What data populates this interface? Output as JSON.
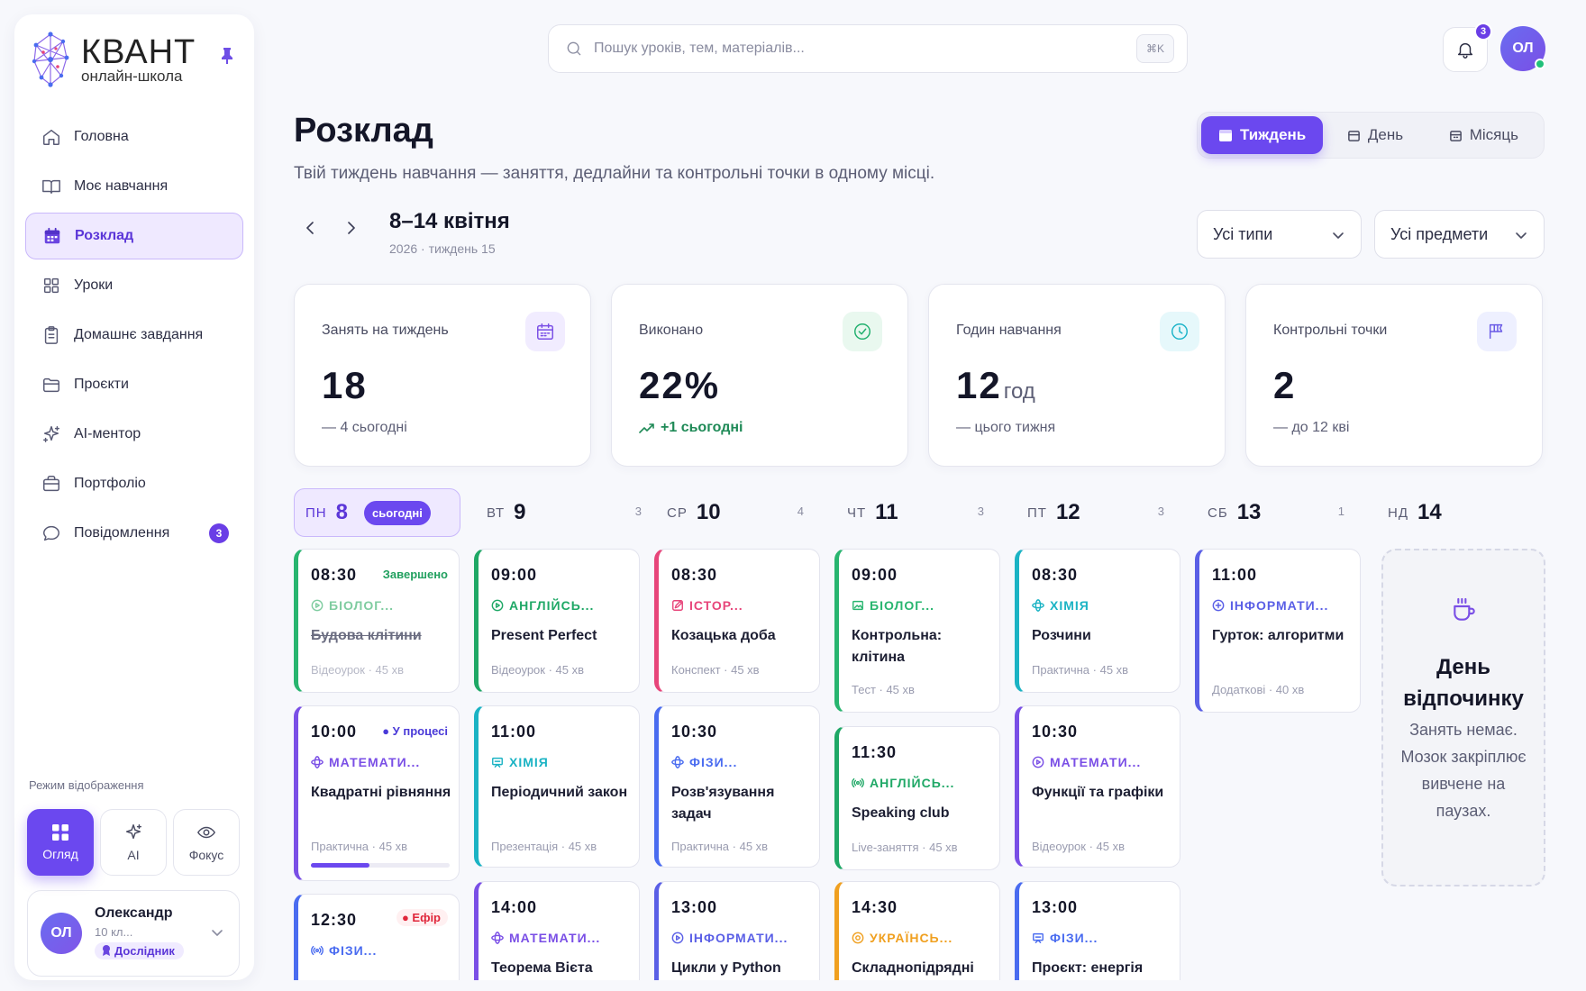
{
  "brand": {
    "name": "КВАНТ",
    "tagline": "онлайн-школа"
  },
  "sidebar": {
    "items": [
      {
        "label": "Головна",
        "icon": "home-icon"
      },
      {
        "label": "Моє навчання",
        "icon": "book-icon"
      },
      {
        "label": "Розклад",
        "icon": "calendar-icon",
        "active": true
      },
      {
        "label": "Уроки",
        "icon": "grid-icon"
      },
      {
        "label": "Домашнє завдання",
        "icon": "clipboard-icon"
      },
      {
        "label": "Проєкти",
        "icon": "folder-icon"
      },
      {
        "label": "AI-ментор",
        "icon": "sparkle-icon"
      },
      {
        "label": "Портфоліо",
        "icon": "briefcase-icon"
      },
      {
        "label": "Повідомлення",
        "icon": "chat-icon",
        "badge": "3"
      }
    ],
    "mode_label": "Режим відображення",
    "modes": [
      {
        "label": "Огляд",
        "active": true
      },
      {
        "label": "AI"
      },
      {
        "label": "Фокус"
      }
    ],
    "user": {
      "initials": "ОЛ",
      "name": "Олександр",
      "class": "10 кл...",
      "rank": "Дослідник"
    }
  },
  "topbar": {
    "search_placeholder": "Пошук уроків, тем, матеріалів...",
    "shortcut": "⌘K",
    "notifications": "3",
    "avatar": "ОЛ"
  },
  "header": {
    "title": "Розклад",
    "subtitle": "Твій тиждень навчання — заняття, дедлайни та контрольні точки в одному місці.",
    "week_title": "8–14 квітня",
    "week_sub": "2026 · тиждень 15",
    "views": [
      {
        "label": "Тиждень",
        "active": true
      },
      {
        "label": "День"
      },
      {
        "label": "Місяць"
      }
    ],
    "filters": {
      "types": "Усі типи",
      "subjects": "Усі предмети"
    }
  },
  "stats": [
    {
      "label": "Занять на тиждень",
      "value": "18",
      "unit": "",
      "note": "— 4 сьогодні",
      "color": "#7a4fe6"
    },
    {
      "label": "Виконано",
      "value": "22%",
      "unit": "",
      "note": "+1 сьогодні",
      "color": "#21b06e"
    },
    {
      "label": "Годин навчання",
      "value": "12",
      "unit": "год",
      "note": "— цього тижня",
      "color": "#1db4c9"
    },
    {
      "label": "Контрольні точки",
      "value": "2",
      "unit": "",
      "note": "— до 12 кві",
      "color": "#6a5be6"
    }
  ],
  "days": [
    {
      "name": "ПН",
      "date": "8",
      "today_label": "сьогодні",
      "count": ""
    },
    {
      "name": "ВТ",
      "date": "9",
      "count": "3"
    },
    {
      "name": "СР",
      "date": "10",
      "count": "4"
    },
    {
      "name": "ЧТ",
      "date": "11",
      "count": "3"
    },
    {
      "name": "ПТ",
      "date": "12",
      "count": "3"
    },
    {
      "name": "СБ",
      "date": "13",
      "count": "1"
    },
    {
      "name": "НД",
      "date": "14",
      "count": ""
    }
  ],
  "lessons": [
    {
      "time": "08:30",
      "status": "Завершено",
      "subject": "БІОЛОГ...",
      "title": "Будова клітини",
      "meta": "Відеоурок · 45 хв",
      "color": "#28b56f"
    },
    {
      "time": "10:00",
      "status": "● У процесі",
      "subject": "МАТЕМАТИ...",
      "title": "Квадратні рівняння",
      "meta": "Практична · 45 хв",
      "color": "#7a4fe6",
      "progress": 0.42
    },
    {
      "time": "12:30",
      "status": "● Ефір",
      "subject": "ФІЗИ...",
      "title": "",
      "meta": "",
      "color": "#4a6cf0"
    },
    {
      "time": "09:00",
      "subject": "АНГЛІЙСЬ...",
      "title": "Present Perfect",
      "meta": "Відеоурок · 45 хв",
      "color": "#1fa866"
    },
    {
      "time": "11:00",
      "subject": "ХІМІЯ",
      "title": "Періодичний закон",
      "meta": "Презентація · 45 хв",
      "color": "#1bb3c4"
    },
    {
      "time": "14:00",
      "subject": "МАТЕМАТИ...",
      "title": "Теорема Вієта",
      "meta": "",
      "color": "#7a4fe6"
    },
    {
      "time": "08:30",
      "subject": "ІСТОР...",
      "title": "Козацька доба",
      "meta": "Конспект · 45 хв",
      "color": "#e7457a"
    },
    {
      "time": "10:30",
      "subject": "ФІЗИ...",
      "title": "Розв'язування задач",
      "meta": "Практична · 45 хв",
      "color": "#4a6cf0"
    },
    {
      "time": "13:00",
      "subject": "ІНФОРМАТИ...",
      "title": "Цикли у Python",
      "meta": "",
      "color": "#5a5fe6"
    },
    {
      "time": "09:00",
      "subject": "БІОЛОГ...",
      "title": "Контрольна: клітина",
      "meta": "Тест · 45 хв",
      "color": "#28b56f"
    },
    {
      "time": "11:30",
      "subject": "АНГЛІЙСЬ...",
      "title": "Speaking club",
      "meta": "Live-заняття · 45 хв",
      "color": "#1fa866"
    },
    {
      "time": "14:30",
      "subject": "УКРАЇНСЬ...",
      "title": "Складнопідрядні",
      "meta": "",
      "color": "#f0a020"
    },
    {
      "time": "08:30",
      "subject": "ХІМІЯ",
      "title": "Розчини",
      "meta": "Практична · 45 хв",
      "color": "#1bb3c4"
    },
    {
      "time": "10:30",
      "subject": "МАТЕМАТИ...",
      "title": "Функції та графіки",
      "meta": "Відеоурок · 45 хв",
      "color": "#7a4fe6"
    },
    {
      "time": "13:00",
      "subject": "ФІЗИ...",
      "title": "Проєкт: енергія",
      "meta": "",
      "color": "#4a6cf0"
    },
    {
      "time": "11:00",
      "subject": "ІНФОРМАТИ...",
      "title": "Гурток: алгоритми",
      "meta": "Додаткові · 40 хв",
      "color": "#5a5fe6"
    }
  ],
  "rest_day": {
    "title": "День відпочинку",
    "text": "Занять немає. Мозок закріплює вивчене на паузах."
  }
}
